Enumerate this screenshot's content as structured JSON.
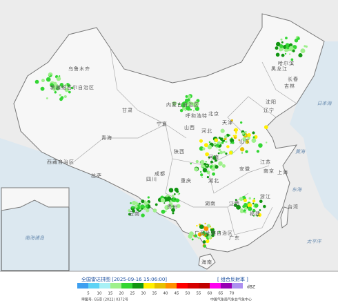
{
  "map": {
    "labels": [
      "新疆维吾尔自治区",
      "西藏自治区",
      "青海",
      "甘肃",
      "内蒙古自治区",
      "黑龙江",
      "吉林",
      "辽宁",
      "北京",
      "天津",
      "河北",
      "山西",
      "山东",
      "河南",
      "陕西",
      "宁夏",
      "四川",
      "重庆",
      "湖北",
      "安徽",
      "江苏",
      "上海",
      "浙江",
      "湖南",
      "江西",
      "福建",
      "台湾",
      "贵州",
      "云南",
      "广西壮族自治区",
      "广东",
      "海南",
      "乌鲁木齐",
      "拉萨",
      "哈尔滨",
      "长春",
      "沈阳",
      "呼和浩特",
      "南京",
      "成都",
      "日本海",
      "黄海",
      "东海",
      "太平洋",
      "南海诸岛"
    ]
  },
  "legend": {
    "title": "全国雷达拼图 [2025-09-16 15:06:00]",
    "product": "[ 组合反射率 ]",
    "unit": "dBZ",
    "ticks": [
      5,
      10,
      15,
      20,
      25,
      30,
      35,
      40,
      45,
      50,
      55,
      60,
      65,
      70
    ],
    "colors": [
      "#3d9ff0",
      "#5fd3f5",
      "#a8f0f5",
      "#9ef08c",
      "#33d633",
      "#129612",
      "#ffef00",
      "#e6c000",
      "#ff9000",
      "#ff0000",
      "#d60000",
      "#c00000",
      "#ff00f0",
      "#9600b4",
      "#ad90f0"
    ]
  },
  "footer": {
    "approval": "审图号: GS京 (2022) 0372号",
    "source": "中国气象局气象台气象中心"
  }
}
